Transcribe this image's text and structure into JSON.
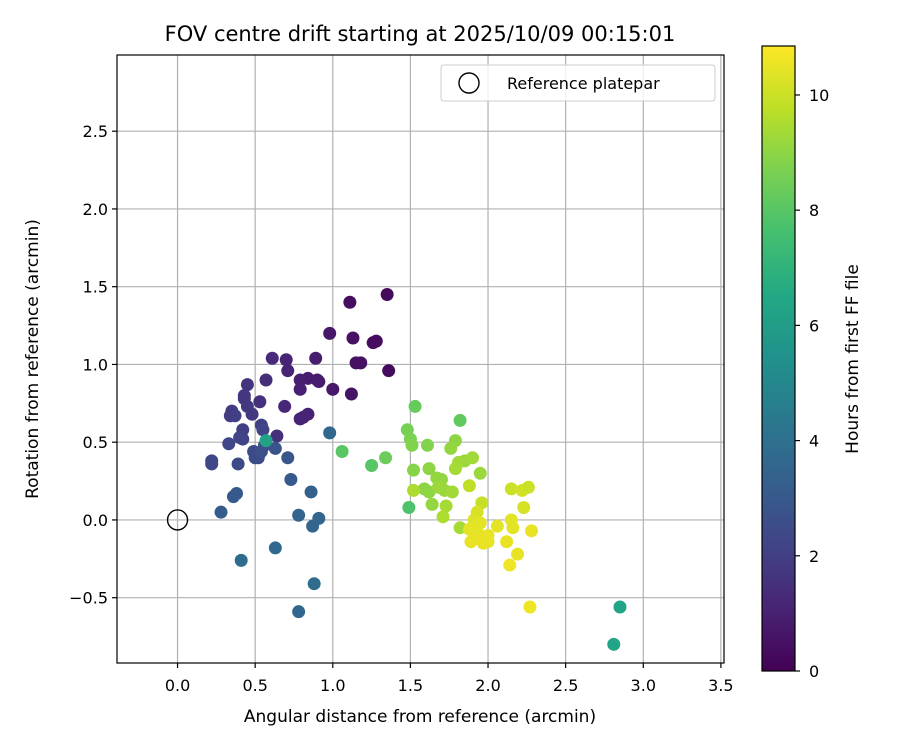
{
  "chart_data": {
    "type": "scatter",
    "title": "FOV centre drift starting at 2025/10/09 00:15:01",
    "xlabel": "Angular distance from reference (arcmin)",
    "ylabel": "Rotation from reference (arcmin)",
    "xlim": [
      -0.39,
      3.52
    ],
    "ylim": [
      -0.92,
      2.99
    ],
    "xticks": [
      0.0,
      0.5,
      1.0,
      1.5,
      2.0,
      2.5,
      3.0,
      3.5
    ],
    "xtick_labels": [
      "0.0",
      "0.5",
      "1.0",
      "1.5",
      "2.0",
      "2.5",
      "3.0",
      "3.5"
    ],
    "yticks": [
      -0.5,
      0.0,
      0.5,
      1.0,
      1.5,
      2.0,
      2.5
    ],
    "ytick_labels": [
      "−0.5",
      "0.0",
      "0.5",
      "1.0",
      "1.5",
      "2.0",
      "2.5"
    ],
    "grid": true,
    "legend": {
      "position": "top-right",
      "entries": [
        "Reference platepar"
      ]
    },
    "reference_point": {
      "x": 0.0,
      "y": 0.0,
      "label": "Reference platepar"
    },
    "colorbar": {
      "label": "Hours from first FF file",
      "range": [
        0,
        10.85
      ],
      "ticks": [
        0,
        2,
        4,
        6,
        8,
        10
      ],
      "tick_labels": [
        "0",
        "2",
        "4",
        "6",
        "8",
        "10"
      ],
      "colormap": "viridis"
    },
    "points": [
      {
        "x": 1.35,
        "y": 1.45,
        "h": 0.3
      },
      {
        "x": 1.11,
        "y": 1.4,
        "h": 0.4
      },
      {
        "x": 1.36,
        "y": 0.96,
        "h": 0.3
      },
      {
        "x": 1.26,
        "y": 1.14,
        "h": 0.4
      },
      {
        "x": 1.28,
        "y": 1.15,
        "h": 0.35
      },
      {
        "x": 1.13,
        "y": 1.17,
        "h": 0.5
      },
      {
        "x": 1.15,
        "y": 1.01,
        "h": 0.5
      },
      {
        "x": 1.18,
        "y": 1.01,
        "h": 0.5
      },
      {
        "x": 1.12,
        "y": 0.81,
        "h": 0.6
      },
      {
        "x": 1.0,
        "y": 0.84,
        "h": 0.7
      },
      {
        "x": 0.98,
        "y": 1.2,
        "h": 0.7
      },
      {
        "x": 0.9,
        "y": 0.9,
        "h": 0.8
      },
      {
        "x": 0.91,
        "y": 0.89,
        "h": 0.85
      },
      {
        "x": 0.89,
        "y": 1.04,
        "h": 0.9
      },
      {
        "x": 0.84,
        "y": 0.91,
        "h": 0.9
      },
      {
        "x": 0.79,
        "y": 0.9,
        "h": 0.95
      },
      {
        "x": 0.79,
        "y": 0.84,
        "h": 1.0
      },
      {
        "x": 0.7,
        "y": 1.03,
        "h": 1.1
      },
      {
        "x": 0.71,
        "y": 0.96,
        "h": 1.1
      },
      {
        "x": 0.84,
        "y": 0.68,
        "h": 1.0
      },
      {
        "x": 0.79,
        "y": 0.65,
        "h": 1.1
      },
      {
        "x": 0.81,
        "y": 0.66,
        "h": 1.1
      },
      {
        "x": 0.69,
        "y": 0.73,
        "h": 1.2
      },
      {
        "x": 0.61,
        "y": 1.04,
        "h": 1.3
      },
      {
        "x": 0.57,
        "y": 0.9,
        "h": 1.4
      },
      {
        "x": 0.64,
        "y": 0.54,
        "h": 1.5
      },
      {
        "x": 0.53,
        "y": 0.76,
        "h": 1.5
      },
      {
        "x": 0.45,
        "y": 0.87,
        "h": 1.6
      },
      {
        "x": 0.43,
        "y": 0.8,
        "h": 1.7
      },
      {
        "x": 0.43,
        "y": 0.78,
        "h": 1.7
      },
      {
        "x": 0.45,
        "y": 0.73,
        "h": 1.8
      },
      {
        "x": 0.48,
        "y": 0.68,
        "h": 1.8
      },
      {
        "x": 0.35,
        "y": 0.7,
        "h": 1.9
      },
      {
        "x": 0.34,
        "y": 0.67,
        "h": 1.9
      },
      {
        "x": 0.37,
        "y": 0.67,
        "h": 2.0
      },
      {
        "x": 0.42,
        "y": 0.58,
        "h": 2.0
      },
      {
        "x": 0.42,
        "y": 0.52,
        "h": 2.1
      },
      {
        "x": 0.54,
        "y": 0.61,
        "h": 2.1
      },
      {
        "x": 0.55,
        "y": 0.58,
        "h": 2.2
      },
      {
        "x": 0.4,
        "y": 0.53,
        "h": 2.2
      },
      {
        "x": 0.33,
        "y": 0.49,
        "h": 2.3
      },
      {
        "x": 0.22,
        "y": 0.38,
        "h": 2.3
      },
      {
        "x": 0.22,
        "y": 0.36,
        "h": 2.3
      },
      {
        "x": 0.39,
        "y": 0.36,
        "h": 2.4
      },
      {
        "x": 0.49,
        "y": 0.44,
        "h": 2.5
      },
      {
        "x": 0.5,
        "y": 0.4,
        "h": 2.5
      },
      {
        "x": 0.52,
        "y": 0.4,
        "h": 2.5
      },
      {
        "x": 0.54,
        "y": 0.44,
        "h": 2.6
      },
      {
        "x": 0.56,
        "y": 0.48,
        "h": 2.6
      },
      {
        "x": 0.63,
        "y": 0.46,
        "h": 2.8
      },
      {
        "x": 0.71,
        "y": 0.4,
        "h": 2.9
      },
      {
        "x": 0.73,
        "y": 0.26,
        "h": 3.0
      },
      {
        "x": 0.38,
        "y": 0.17,
        "h": 3.0
      },
      {
        "x": 0.36,
        "y": 0.15,
        "h": 3.0
      },
      {
        "x": 0.28,
        "y": 0.05,
        "h": 3.1
      },
      {
        "x": 0.86,
        "y": 0.18,
        "h": 3.3
      },
      {
        "x": 0.78,
        "y": 0.03,
        "h": 3.5
      },
      {
        "x": 0.91,
        "y": 0.01,
        "h": 3.5
      },
      {
        "x": 0.87,
        "y": -0.04,
        "h": 3.5
      },
      {
        "x": 0.98,
        "y": 0.56,
        "h": 3.6
      },
      {
        "x": 0.63,
        "y": -0.18,
        "h": 3.7
      },
      {
        "x": 0.41,
        "y": -0.26,
        "h": 3.8
      },
      {
        "x": 0.88,
        "y": -0.41,
        "h": 3.8
      },
      {
        "x": 0.78,
        "y": -0.59,
        "h": 3.6
      },
      {
        "x": 0.57,
        "y": 0.51,
        "h": 6.2
      },
      {
        "x": 2.85,
        "y": -0.56,
        "h": 6.3
      },
      {
        "x": 2.81,
        "y": -0.8,
        "h": 6.3
      },
      {
        "x": 1.49,
        "y": 0.08,
        "h": 7.8
      },
      {
        "x": 1.25,
        "y": 0.35,
        "h": 8.0
      },
      {
        "x": 1.06,
        "y": 0.44,
        "h": 8.0
      },
      {
        "x": 1.34,
        "y": 0.4,
        "h": 8.4
      },
      {
        "x": 1.53,
        "y": 0.73,
        "h": 8.3
      },
      {
        "x": 1.82,
        "y": 0.64,
        "h": 8.2
      },
      {
        "x": 1.48,
        "y": 0.58,
        "h": 8.6
      },
      {
        "x": 1.5,
        "y": 0.52,
        "h": 8.7
      },
      {
        "x": 1.51,
        "y": 0.48,
        "h": 8.8
      },
      {
        "x": 1.61,
        "y": 0.48,
        "h": 8.8
      },
      {
        "x": 1.52,
        "y": 0.32,
        "h": 8.9
      },
      {
        "x": 1.59,
        "y": 0.2,
        "h": 9.0
      },
      {
        "x": 1.62,
        "y": 0.18,
        "h": 9.0
      },
      {
        "x": 1.64,
        "y": 0.1,
        "h": 9.1
      },
      {
        "x": 1.62,
        "y": 0.33,
        "h": 9.0
      },
      {
        "x": 1.67,
        "y": 0.27,
        "h": 9.1
      },
      {
        "x": 1.7,
        "y": 0.26,
        "h": 9.1
      },
      {
        "x": 1.72,
        "y": 0.19,
        "h": 9.2
      },
      {
        "x": 1.68,
        "y": 0.21,
        "h": 9.2
      },
      {
        "x": 1.79,
        "y": 0.51,
        "h": 9.0
      },
      {
        "x": 1.76,
        "y": 0.46,
        "h": 9.1
      },
      {
        "x": 1.85,
        "y": 0.38,
        "h": 9.2
      },
      {
        "x": 1.9,
        "y": 0.4,
        "h": 9.3
      },
      {
        "x": 1.81,
        "y": 0.37,
        "h": 9.3
      },
      {
        "x": 1.79,
        "y": 0.33,
        "h": 9.4
      },
      {
        "x": 1.77,
        "y": 0.18,
        "h": 9.3
      },
      {
        "x": 1.73,
        "y": 0.09,
        "h": 9.4
      },
      {
        "x": 1.71,
        "y": 0.02,
        "h": 9.5
      },
      {
        "x": 1.82,
        "y": -0.05,
        "h": 9.4
      },
      {
        "x": 1.88,
        "y": 0.22,
        "h": 9.8
      },
      {
        "x": 1.95,
        "y": 0.3,
        "h": 9.2
      },
      {
        "x": 1.52,
        "y": 0.19,
        "h": 9.5
      },
      {
        "x": 1.96,
        "y": 0.11,
        "h": 9.9
      },
      {
        "x": 1.93,
        "y": 0.05,
        "h": 10.2
      },
      {
        "x": 1.91,
        "y": 0.0,
        "h": 10.3
      },
      {
        "x": 1.95,
        "y": -0.02,
        "h": 10.4
      },
      {
        "x": 1.93,
        "y": -0.08,
        "h": 10.4
      },
      {
        "x": 1.88,
        "y": -0.06,
        "h": 10.4
      },
      {
        "x": 1.89,
        "y": -0.14,
        "h": 10.5
      },
      {
        "x": 1.92,
        "y": -0.12,
        "h": 10.5
      },
      {
        "x": 1.97,
        "y": -0.15,
        "h": 10.5
      },
      {
        "x": 2.0,
        "y": -0.1,
        "h": 10.5
      },
      {
        "x": 2.0,
        "y": -0.14,
        "h": 10.5
      },
      {
        "x": 2.06,
        "y": -0.04,
        "h": 10.4
      },
      {
        "x": 2.12,
        "y": -0.14,
        "h": 10.5
      },
      {
        "x": 2.16,
        "y": -0.05,
        "h": 10.4
      },
      {
        "x": 2.15,
        "y": 0.0,
        "h": 10.4
      },
      {
        "x": 2.19,
        "y": -0.22,
        "h": 10.5
      },
      {
        "x": 2.14,
        "y": -0.29,
        "h": 10.6
      },
      {
        "x": 2.15,
        "y": 0.2,
        "h": 10.0
      },
      {
        "x": 2.22,
        "y": 0.19,
        "h": 10.1
      },
      {
        "x": 2.26,
        "y": 0.21,
        "h": 10.0
      },
      {
        "x": 2.23,
        "y": 0.08,
        "h": 10.2
      },
      {
        "x": 2.28,
        "y": -0.07,
        "h": 10.5
      },
      {
        "x": 2.27,
        "y": -0.56,
        "h": 10.6
      }
    ]
  }
}
